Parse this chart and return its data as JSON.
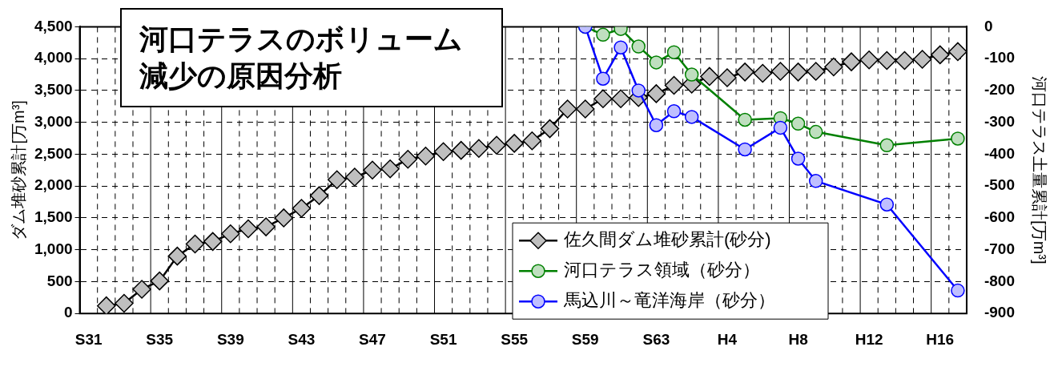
{
  "chart_data": {
    "type": "line",
    "title": "河口テラスのボリューム減少の原因分析",
    "ylabel": "ダム堆砂累計[万m³]",
    "y2label": "河口テラス土量累計[万m³]",
    "categories": [
      "S31",
      null,
      null,
      null,
      "S35",
      null,
      null,
      null,
      "S39",
      null,
      null,
      null,
      "S43",
      null,
      null,
      null,
      "S47",
      null,
      null,
      null,
      "S51",
      null,
      null,
      null,
      "S55",
      null,
      null,
      null,
      "S59",
      null,
      null,
      null,
      "S63",
      null,
      null,
      null,
      "H4",
      null,
      null,
      null,
      "H8",
      null,
      null,
      null,
      "H12",
      null,
      null,
      null,
      "H16",
      null
    ],
    "series": [
      {
        "name": "佐久間ダム堆砂累計(砂分)",
        "color": "#000000",
        "marker": "diamond",
        "values": [
          null,
          120,
          160,
          380,
          510,
          900,
          1090,
          1130,
          1250,
          1330,
          1360,
          1500,
          1650,
          1850,
          2100,
          2140,
          2250,
          2270,
          2420,
          2470,
          2540,
          2560,
          2590,
          2640,
          2670,
          2710,
          2900,
          3210,
          3210,
          3370,
          3370,
          3390,
          3450,
          3580,
          3600,
          3720,
          3700,
          3790,
          3770,
          3800,
          3790,
          3800,
          3870,
          3950,
          3980,
          3970,
          3970,
          3990,
          4060,
          4110
        ]
      },
      {
        "name": "河口テラス領域（砂分）",
        "color": "#008000",
        "marker": "circle",
        "axis": "y2",
        "values": [
          null,
          null,
          null,
          null,
          null,
          null,
          null,
          null,
          null,
          null,
          null,
          null,
          null,
          null,
          null,
          null,
          null,
          null,
          null,
          null,
          null,
          null,
          null,
          null,
          null,
          null,
          null,
          null,
          0,
          -25,
          -7,
          -62,
          -112,
          -80,
          -150,
          null,
          null,
          -292,
          null,
          -287,
          -304,
          -330,
          null,
          null,
          null,
          -372,
          null,
          null,
          null,
          -351
        ]
      },
      {
        "name": "馬込川～竜洋海岸（砂分）",
        "color": "#0000ff",
        "marker": "circle",
        "axis": "y2",
        "values": [
          null,
          null,
          null,
          null,
          null,
          null,
          null,
          null,
          null,
          null,
          null,
          null,
          null,
          null,
          null,
          null,
          null,
          null,
          null,
          null,
          null,
          null,
          null,
          null,
          null,
          null,
          null,
          null,
          0,
          -163,
          -65,
          -200,
          -309,
          -265,
          -283,
          null,
          null,
          -385,
          null,
          -317,
          -414,
          -484,
          null,
          null,
          null,
          -558,
          null,
          null,
          null,
          -828
        ]
      }
    ],
    "ylim": [
      0,
      4500
    ],
    "yticks": [
      0,
      500,
      {
        "value": 1000,
        "label": "1,000"
      },
      {
        "value": 1500,
        "label": "1,500"
      },
      {
        "value": 2000,
        "label": "2,000"
      },
      {
        "value": 2500,
        "label": "2,500"
      },
      {
        "value": 3000,
        "label": "3,000"
      },
      {
        "value": 3500,
        "label": "3,500"
      },
      {
        "value": 4000,
        "label": "4,000"
      },
      {
        "value": 4500,
        "label": "4,500"
      }
    ],
    "y2lim": [
      -900,
      0
    ],
    "y2ticks": [
      -900,
      -800,
      -700,
      -600,
      -500,
      -400,
      -300,
      -200,
      -100,
      0
    ],
    "grid": true,
    "legend": "bottom",
    "line_style": "solid"
  }
}
